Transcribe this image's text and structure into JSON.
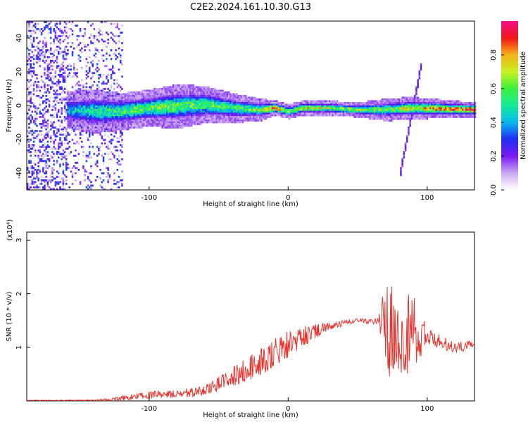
{
  "title": "C2E2.2024.161.10.30.G13",
  "colors": {
    "series": "#e8332d",
    "frame": "#000000"
  },
  "chart_data": [
    {
      "type": "heatmap",
      "xlabel": "Height of straight line (km)",
      "ylabel": "Frequency (Hz)",
      "xlim": [
        -188,
        134
      ],
      "ylim": [
        -50,
        50
      ],
      "x_ticks": [
        -100,
        0,
        100
      ],
      "y_ticks": [
        -40,
        -20,
        0,
        20,
        40
      ],
      "colorbar": {
        "label": "Normalized spectral amplitude",
        "range": [
          0,
          1
        ],
        "ticks": [
          0.0,
          0.2,
          0.4,
          0.6,
          0.8
        ],
        "colors": [
          "#ffffff",
          "#c9a8f2",
          "#7a1bf2",
          "#1f2cf0",
          "#08b7f0",
          "#14ec9a",
          "#3cf03c",
          "#c8f01e",
          "#f4b21a",
          "#f01616",
          "#f2108a"
        ]
      },
      "ridge": {
        "x": [
          -160,
          -140,
          -120,
          -100,
          -80,
          -60,
          -40,
          -20,
          -10,
          0,
          10,
          30,
          50,
          70,
          88,
          134
        ],
        "center_hz": [
          -2,
          -3,
          -3,
          -1,
          0,
          1,
          -1,
          -2,
          -1,
          -3,
          -1,
          -1,
          -2,
          -2,
          -1,
          -2
        ],
        "half_width_hz": [
          5,
          6,
          5,
          5,
          6,
          5,
          4,
          3,
          2,
          2,
          2,
          2,
          2,
          3,
          3,
          2
        ],
        "amplitude": [
          0.4,
          0.5,
          0.55,
          0.6,
          0.6,
          0.58,
          0.55,
          0.6,
          0.9,
          0.6,
          0.7,
          0.65,
          0.65,
          0.6,
          0.7,
          0.95
        ]
      },
      "diagonal_streak": {
        "x": [
          80,
          96
        ],
        "freq_hz": [
          -40,
          28
        ]
      },
      "noise_region_x": [
        -188,
        -120
      ]
    },
    {
      "type": "line",
      "xlabel": "Height of straight line (km)",
      "ylabel": "SNR (10 * v/v)",
      "y_multiplier": "(x10⁴)",
      "xlim": [
        -188,
        134
      ],
      "ylim": [
        0,
        3.15
      ],
      "x_ticks": [
        -100,
        0,
        100
      ],
      "y_ticks": [
        1,
        2,
        3
      ],
      "series": [
        {
          "envelope_x": [
            -188,
            -140,
            -125,
            -110,
            -95,
            -80,
            -70,
            -55,
            -40,
            -25,
            -10,
            0,
            10,
            25,
            40,
            50,
            60,
            68,
            72,
            80,
            88,
            95,
            100,
            110,
            120,
            134
          ],
          "envelope_y": [
            0.01,
            0.01,
            0.03,
            0.08,
            0.12,
            0.13,
            0.15,
            0.25,
            0.45,
            0.65,
            0.9,
            1.05,
            1.2,
            1.35,
            1.45,
            1.5,
            1.48,
            1.5,
            1.3,
            1.3,
            1.2,
            1.25,
            1.2,
            1.1,
            1.0,
            1.05
          ],
          "noise_x": [
            -188,
            -140,
            -110,
            -80,
            -55,
            -30,
            -10,
            10,
            30,
            50,
            65,
            70,
            85,
            95,
            100,
            134
          ],
          "noise_amp": [
            0.005,
            0.01,
            0.06,
            0.08,
            0.12,
            0.22,
            0.3,
            0.2,
            0.08,
            0.04,
            0.05,
            0.85,
            0.95,
            0.6,
            0.15,
            0.08
          ]
        }
      ]
    }
  ]
}
